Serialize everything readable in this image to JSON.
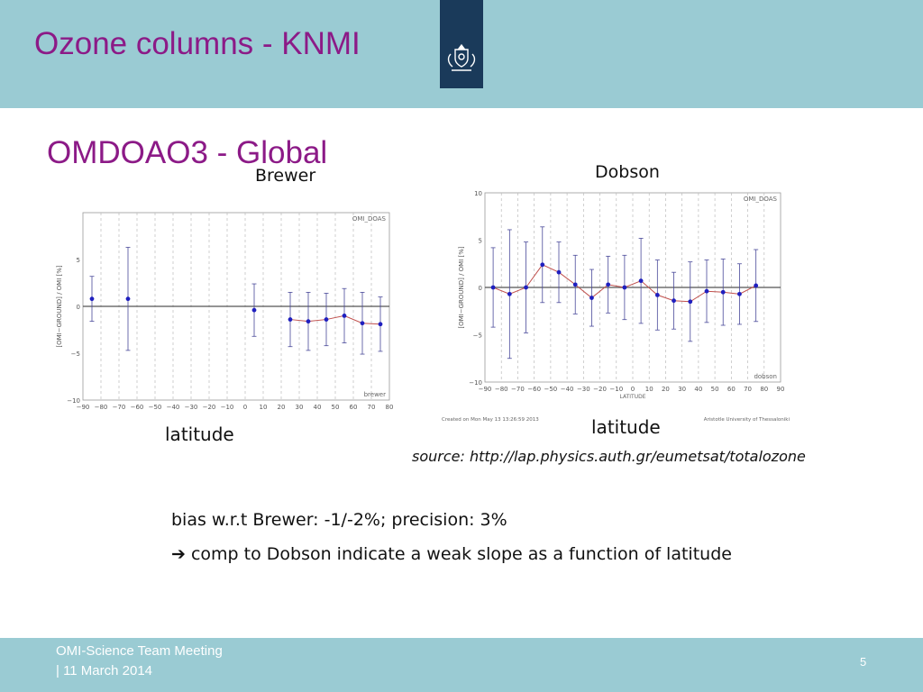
{
  "slide": {
    "title": "Ozone columns - KNMI",
    "subtitle": "OMDOAO3 - Global",
    "source": "source: http://lap.physics.auth.gr/eumetsat/totalozone",
    "bullet1": "bias w.r.t Brewer: -1/-2%; precision: 3%",
    "bullet2": "➔ comp to Dobson indicate a weak slope as a function of latitude",
    "footer_line1": "OMI-Science Team Meeting",
    "footer_line2": "| 11 March 2014",
    "page_number": "5",
    "logo_icon": "royal-coat-of-arms-icon"
  },
  "colors": {
    "header_bg": "#9acbd3",
    "title_color": "#8c1a87",
    "logo_bg": "#1a3a5a",
    "point_color": "#1f1fbf",
    "line_color": "#c0504d"
  },
  "chart_data": [
    {
      "type": "scatter",
      "title": "Brewer",
      "xlabel": "latitude",
      "ylabel": "[OMI−GROUND] / OMI  [%]",
      "legend": "OMI_DOAS",
      "annotation": "brewer",
      "xlim": [
        -90,
        80
      ],
      "ylim": [
        -10,
        10
      ],
      "xticks": [
        "−90",
        "−80",
        "−70",
        "−60",
        "−50",
        "−40",
        "−30",
        "−20",
        "−10",
        "0",
        "10",
        "20",
        "30",
        "40",
        "50",
        "60",
        "70",
        "80"
      ],
      "yticks": [
        "−10",
        "−5",
        "0",
        "5"
      ],
      "x": [
        -85,
        -65,
        5,
        25,
        35,
        45,
        55,
        65,
        75
      ],
      "y": [
        0.8,
        0.8,
        -0.4,
        -1.4,
        -1.6,
        -1.4,
        -1.0,
        -1.8,
        -1.9
      ],
      "err": [
        2.4,
        5.5,
        2.8,
        2.9,
        3.1,
        2.8,
        2.9,
        3.3,
        2.9
      ],
      "connected_from_index": 3,
      "grid": true
    },
    {
      "type": "line",
      "title": "Dobson",
      "xlabel": "latitude",
      "ylabel": "[OMI−GROUND] / OMI  [%]",
      "axis_xlabel": "LATITUDE",
      "legend": "OMI_DOAS",
      "annotation": "dobson",
      "footer_left": "Created on Mon May 13 13:26:59 2013",
      "footer_right": "Aristotle University of Thessaloniki",
      "xlim": [
        -90,
        90
      ],
      "ylim": [
        -10,
        10
      ],
      "xticks": [
        "−90",
        "−80",
        "−70",
        "−60",
        "−50",
        "−40",
        "−30",
        "−20",
        "−10",
        "0",
        "10",
        "20",
        "30",
        "40",
        "50",
        "60",
        "70",
        "80",
        "90"
      ],
      "yticks": [
        "−10",
        "−5",
        "0",
        "5",
        "10"
      ],
      "x": [
        -85,
        -75,
        -65,
        -55,
        -45,
        -35,
        -25,
        -15,
        -5,
        5,
        15,
        25,
        35,
        45,
        55,
        65,
        75
      ],
      "y": [
        0.0,
        -0.7,
        0.0,
        2.4,
        1.6,
        0.3,
        -1.1,
        0.3,
        0.0,
        0.7,
        -0.8,
        -1.4,
        -1.5,
        -0.4,
        -0.5,
        -0.7,
        0.2
      ],
      "err": [
        4.2,
        6.8,
        4.8,
        4.0,
        3.2,
        3.1,
        3.0,
        3.0,
        3.4,
        4.5,
        3.7,
        3.0,
        4.2,
        3.3,
        3.5,
        3.2,
        3.8
      ],
      "grid": true
    }
  ]
}
